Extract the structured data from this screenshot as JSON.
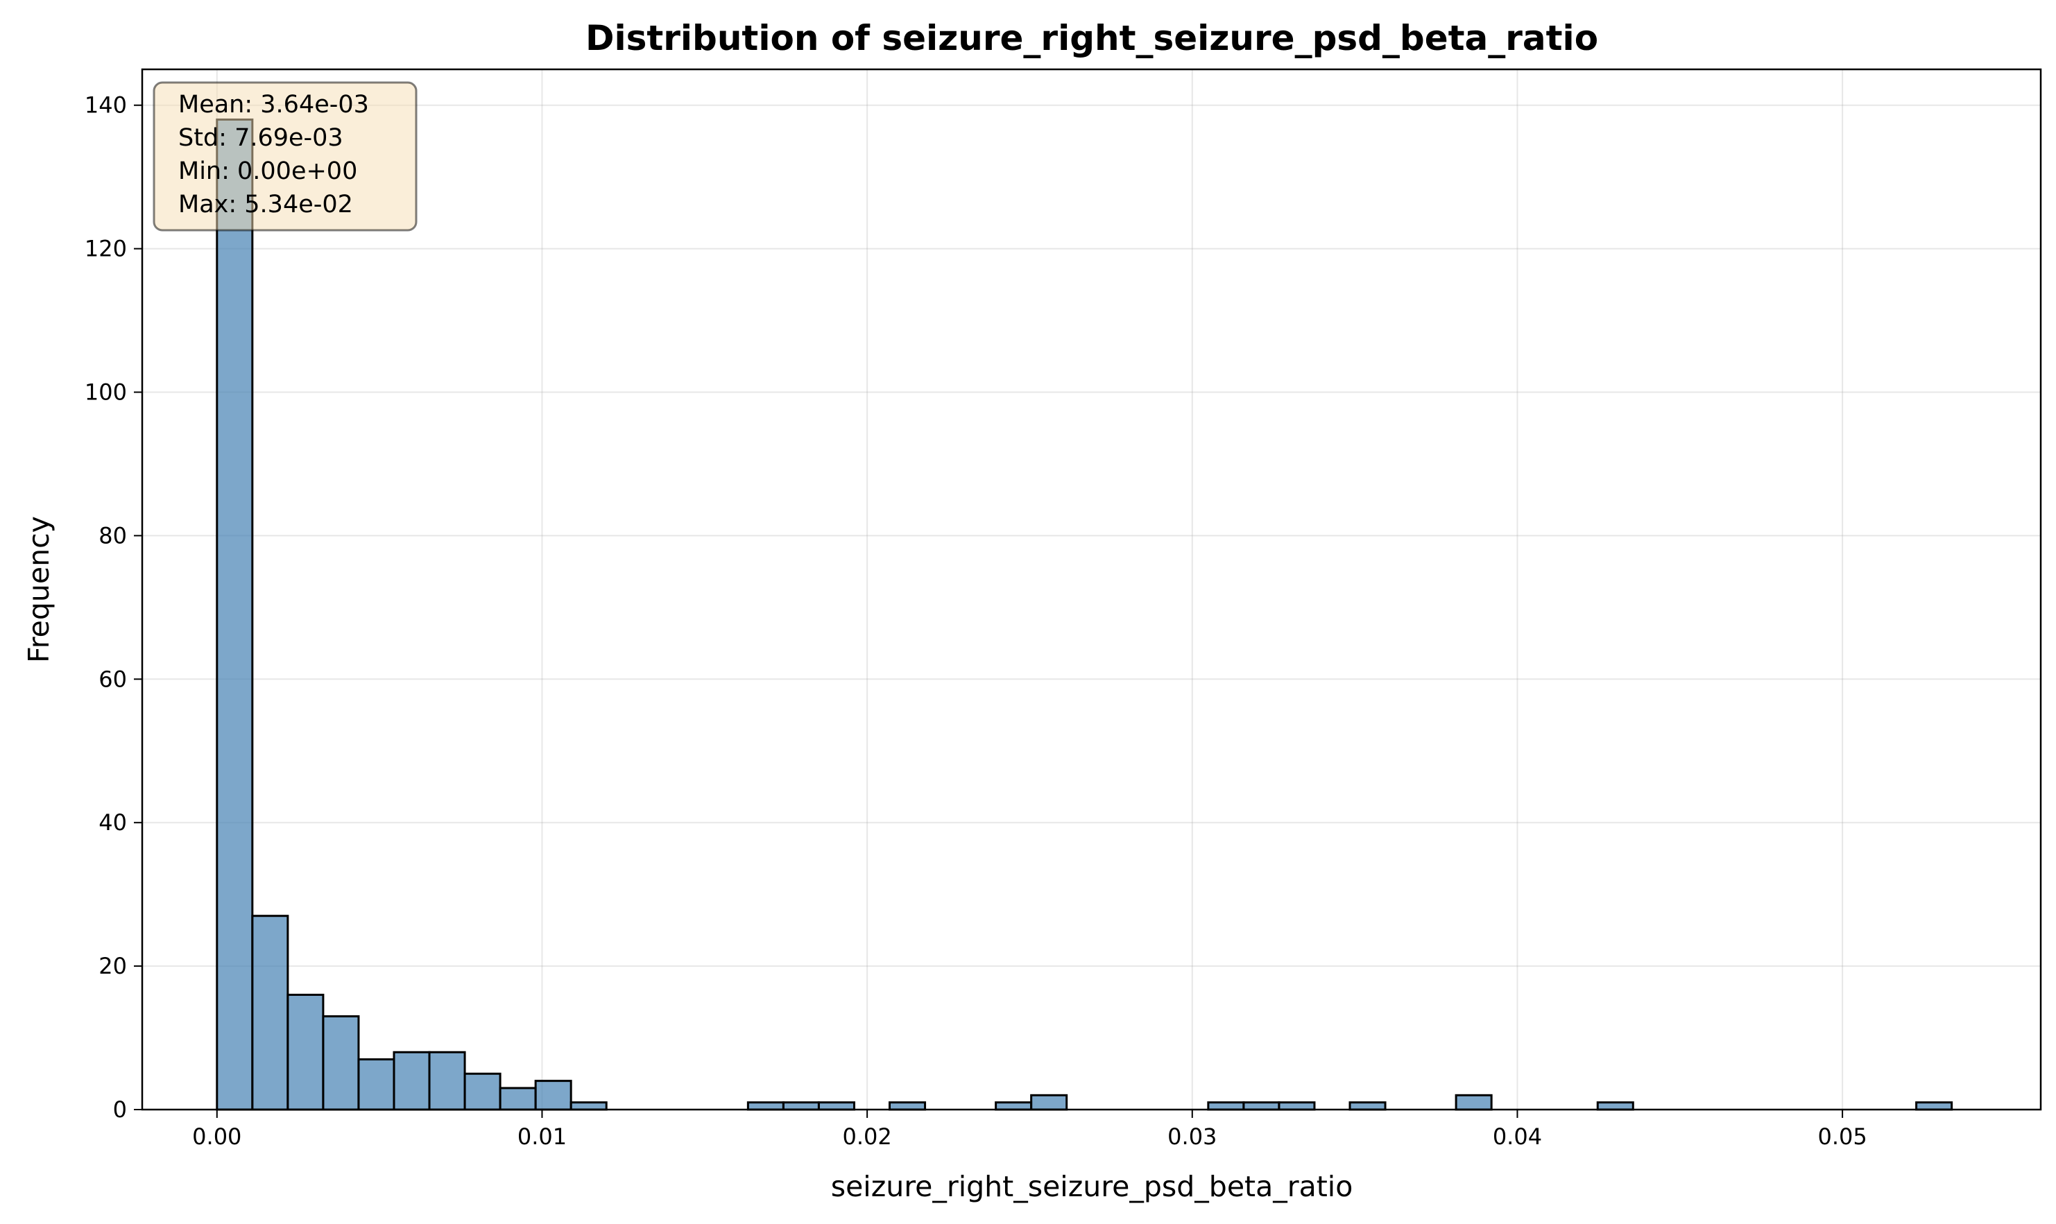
{
  "chart_data": {
    "type": "bar",
    "title": "Distribution of seizure_right_seizure_psd_beta_ratio",
    "xlabel": "seizure_right_seizure_psd_beta_ratio",
    "ylabel": "Frequency",
    "xlim": [
      -0.0023,
      0.0561
    ],
    "ylim": [
      0,
      145
    ],
    "x_ticks": [
      0.0,
      0.01,
      0.02,
      0.03,
      0.04,
      0.05
    ],
    "x_tick_labels": [
      "0.00",
      "0.01",
      "0.02",
      "0.03",
      "0.04",
      "0.05"
    ],
    "y_ticks": [
      0,
      20,
      40,
      60,
      80,
      100,
      120,
      140
    ],
    "y_tick_labels": [
      "0",
      "20",
      "40",
      "60",
      "80",
      "100",
      "120",
      "140"
    ],
    "bin_start": 0.0,
    "bin_width": 0.001089,
    "values": [
      138,
      27,
      16,
      13,
      7,
      8,
      8,
      5,
      3,
      4,
      1,
      0,
      0,
      0,
      0,
      1,
      1,
      1,
      0,
      1,
      0,
      0,
      1,
      2,
      0,
      0,
      0,
      0,
      1,
      1,
      1,
      0,
      1,
      0,
      0,
      2,
      0,
      0,
      0,
      1,
      0,
      0,
      0,
      0,
      0,
      0,
      0,
      0,
      1
    ],
    "bar_color": "#4682b4",
    "bar_edge_color": "#000000",
    "grid": true,
    "stats_box": {
      "lines": [
        "Mean: 3.64e-03",
        "Std: 7.69e-03",
        "Min: 0.00e+00",
        "Max: 5.34e-02"
      ],
      "placement": "top-left",
      "background": "#f5deb3"
    }
  }
}
